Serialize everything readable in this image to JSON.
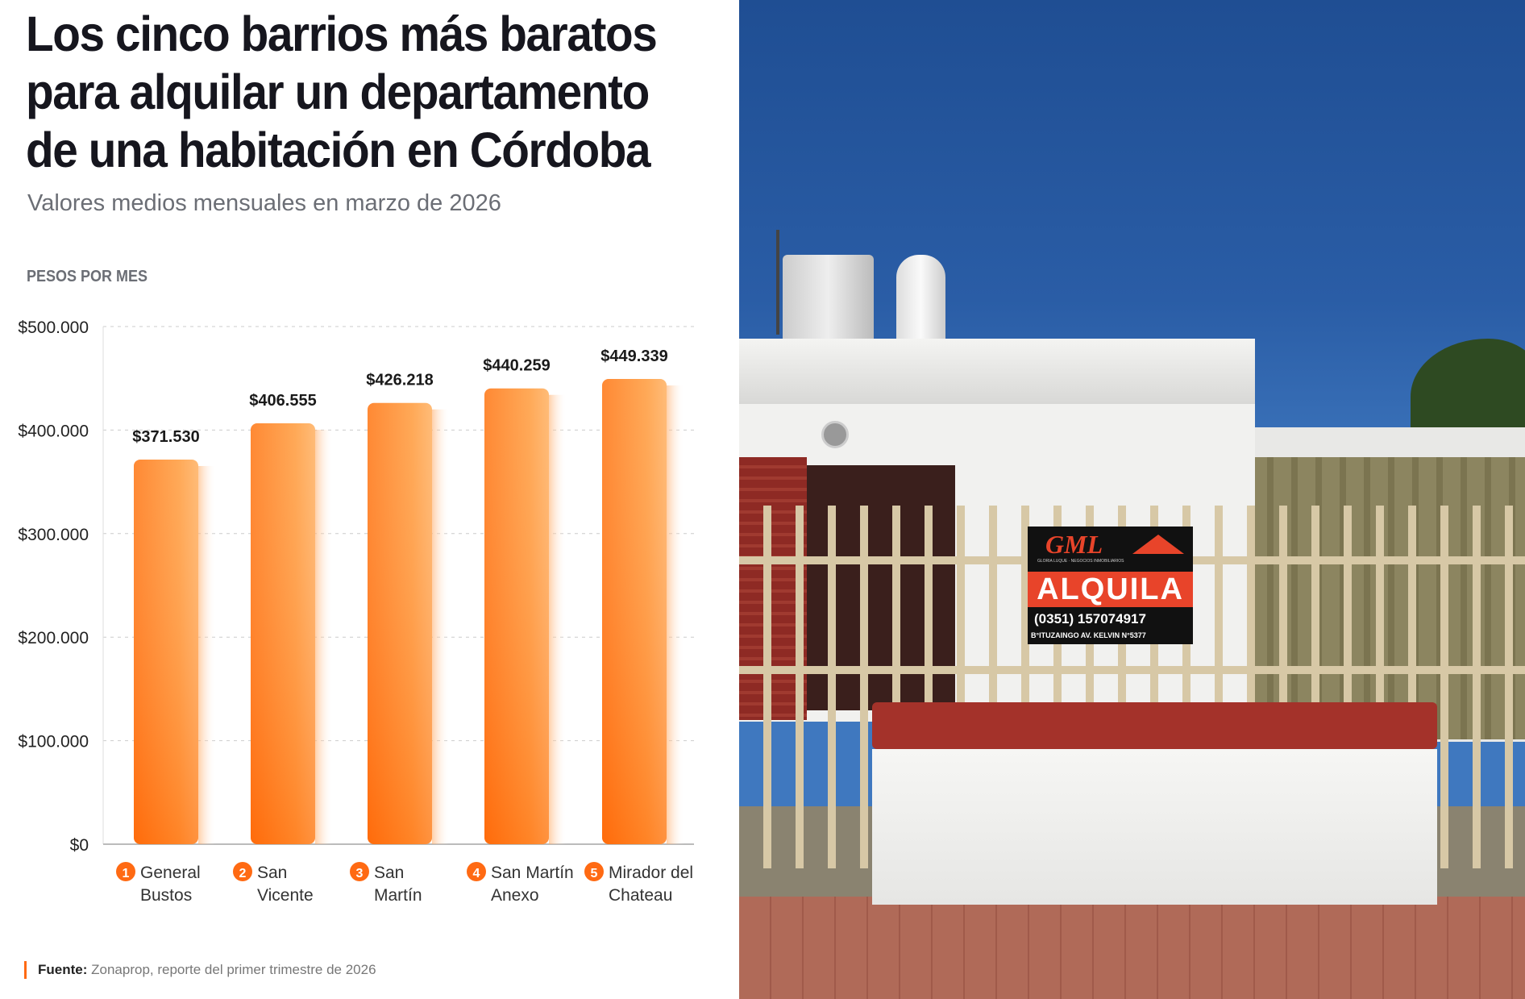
{
  "title": "Los cinco barrios más baratos para alquilar un departamento de una habitación en Córdoba",
  "subtitle": "Valores medios mensuales en marzo de 2026",
  "source": {
    "label": "Fuente:",
    "text": "Zonaprop, reporte del primer trimestre de 2026"
  },
  "colors": {
    "bar": "#ff7a1a",
    "accent": "#ff6a13"
  },
  "chart_data": {
    "type": "bar",
    "ylabel": "PESOS POR MES",
    "ylim": [
      0,
      500000
    ],
    "yticks": [
      "$0",
      "$100.000",
      "$200.000",
      "$300.000",
      "$400.000",
      "$500.000"
    ],
    "grid": true,
    "categories": [
      {
        "rank": "1",
        "line1": "General",
        "line2": "Bustos"
      },
      {
        "rank": "2",
        "line1": "San",
        "line2": "Vicente"
      },
      {
        "rank": "3",
        "line1": "San",
        "line2": "Martín"
      },
      {
        "rank": "4",
        "line1": "San Martín",
        "line2": "Anexo"
      },
      {
        "rank": "5",
        "line1": "Mirador del",
        "line2": "Chateau"
      }
    ],
    "values": [
      371530,
      406555,
      426218,
      440259,
      449339
    ],
    "labels": [
      "$371.530",
      "$406.555",
      "$426.218",
      "$440.259",
      "$449.339"
    ]
  },
  "photo": {
    "sign_brand": "GML",
    "sign_sub": "GLORIA LUQUE · NEGOCIOS INMOBILIARIOS",
    "sign_main": "ALQUILA",
    "sign_phone": "(0351) 157074917",
    "sign_address": "B°ITUZAINGO AV. KELVIN N°5377"
  }
}
